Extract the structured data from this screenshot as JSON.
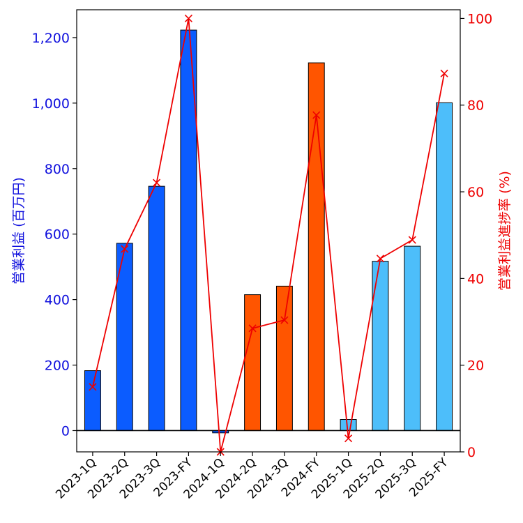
{
  "chart_data": {
    "type": "bar+line",
    "categories": [
      "2023-1Q",
      "2023-2Q",
      "2023-3Q",
      "2023-FY",
      "2024-1Q",
      "2024-2Q",
      "2024-3Q",
      "2024-FY",
      "2025-1Q",
      "2025-2Q",
      "2025-3Q",
      "2025-FY"
    ],
    "series": [
      {
        "name": "営業利益",
        "type": "bar",
        "axis": "left",
        "values": [
          183,
          572,
          746,
          1223,
          -7,
          415,
          441,
          1123,
          34,
          517,
          563,
          1001
        ],
        "colors": [
          "#0b5cff",
          "#0b5cff",
          "#0b5cff",
          "#0b5cff",
          "#0b5cff",
          "#ff5500",
          "#ff5500",
          "#ff5500",
          "#4dbefa",
          "#4dbefa",
          "#4dbefa",
          "#4dbefa"
        ]
      },
      {
        "name": "営業利益進捗率",
        "type": "line",
        "axis": "right",
        "color": "#ee0000",
        "marker": "x",
        "values": [
          15.0,
          46.8,
          62.1,
          100.0,
          0.0,
          28.5,
          30.4,
          77.7,
          3.1,
          44.6,
          48.9,
          87.3
        ]
      }
    ],
    "ylabel": "営業利益 (百万円)",
    "ylabel_right": "営業利益進捗率 (%)",
    "ylim": [
      -65,
      1285
    ],
    "ylim_right": [
      0,
      102
    ],
    "yticks": [
      0,
      200,
      400,
      600,
      800,
      1000,
      1200
    ],
    "ytick_labels": [
      "0",
      "200",
      "400",
      "600",
      "800",
      "1,000",
      "1,200"
    ],
    "yticks_right": [
      0,
      20,
      40,
      60,
      80,
      100
    ],
    "ytick_labels_right": [
      "0",
      "20",
      "40",
      "60",
      "80",
      "100"
    ],
    "zero_line": true,
    "left_axis_color": "#1010dd",
    "right_axis_color": "#ee0000"
  }
}
